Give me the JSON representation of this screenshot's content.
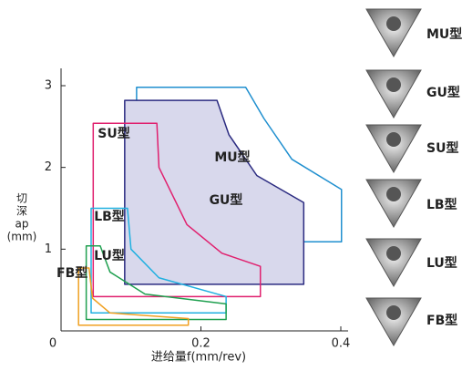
{
  "chart_data": {
    "type": "area-map",
    "x_label": "进给量f(mm/rev)",
    "y_label_lines": [
      "切",
      "深",
      "ap",
      "(mm)"
    ],
    "xlim": [
      0,
      0.4
    ],
    "ylim": [
      0,
      3
    ],
    "xticks": [
      0,
      0.2,
      0.4
    ],
    "yticks": [
      1,
      2,
      3
    ],
    "series": [
      {
        "name": "MU型",
        "color": "#1f8fcf",
        "text_color": "#1a5fb0",
        "x": [
          0.108,
          0.108,
          0.264,
          0.29,
          0.33,
          0.401,
          0.401
        ],
        "y": [
          1.09,
          2.98,
          2.98,
          2.6,
          2.1,
          1.73,
          1.09
        ]
      },
      {
        "name": "GU型",
        "color": "#2a2a80",
        "text_color": "#2a2a80",
        "fill": "#d8d8ec",
        "x": [
          0.091,
          0.091,
          0.223,
          0.24,
          0.28,
          0.347,
          0.347
        ],
        "y": [
          0.57,
          2.82,
          2.82,
          2.4,
          1.9,
          1.57,
          0.57
        ]
      },
      {
        "name": "SU型",
        "color": "#e0206e",
        "text_color": "#e0206e",
        "x": [
          0.046,
          0.046,
          0.137,
          0.14,
          0.18,
          0.23,
          0.285,
          0.285
        ],
        "y": [
          0.42,
          2.54,
          2.54,
          2.0,
          1.3,
          0.95,
          0.79,
          0.42
        ]
      },
      {
        "name": "LB型",
        "color": "#20b0e0",
        "text_color": "#20a8e0",
        "x": [
          0.043,
          0.043,
          0.095,
          0.1,
          0.14,
          0.236,
          0.236
        ],
        "y": [
          0.22,
          1.5,
          1.5,
          1.0,
          0.65,
          0.42,
          0.22
        ]
      },
      {
        "name": "LU型",
        "color": "#20a050",
        "text_color": "#20a050",
        "x": [
          0.036,
          0.036,
          0.056,
          0.07,
          0.12,
          0.236,
          0.236
        ],
        "y": [
          0.14,
          1.04,
          1.04,
          0.72,
          0.45,
          0.33,
          0.14
        ]
      },
      {
        "name": "FB型",
        "color": "#f0a020",
        "text_color": "#f0a020",
        "x": [
          0.025,
          0.025,
          0.04,
          0.045,
          0.07,
          0.182,
          0.182
        ],
        "y": [
          0.07,
          0.77,
          0.77,
          0.4,
          0.22,
          0.15,
          0.07
        ]
      }
    ]
  }
}
